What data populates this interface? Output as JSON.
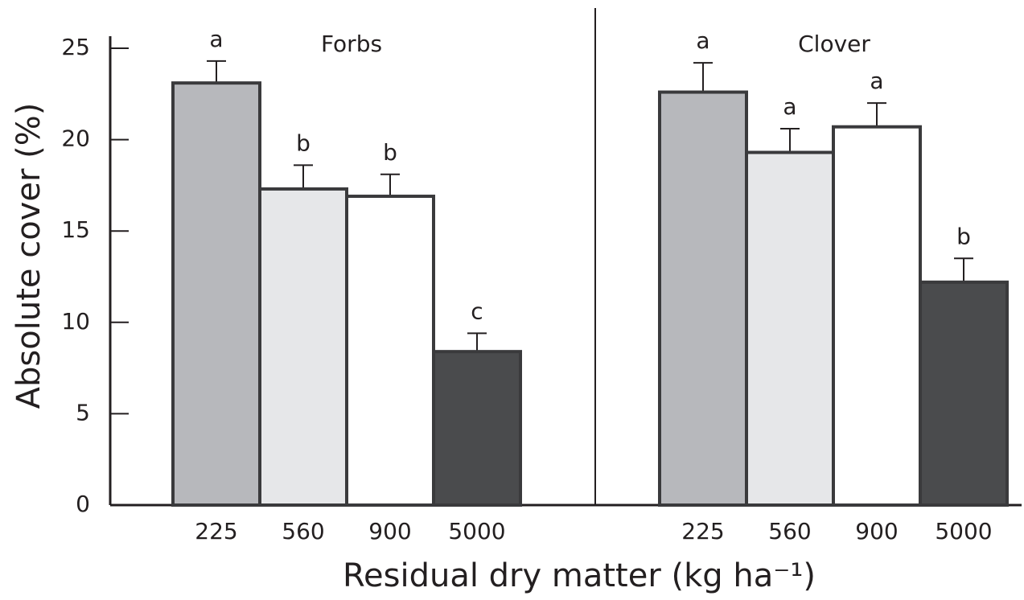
{
  "chart_data": {
    "type": "bar",
    "ylabel": "Absolute cover (%)",
    "xlabel": "Residual dry matter (kg ha⁻¹)",
    "ylim": [
      0,
      25
    ],
    "yticks": [
      0,
      5,
      10,
      15,
      20,
      25
    ],
    "colors": [
      "#b7b8bc",
      "#e6e7e9",
      "#ffffff",
      "#4a4b4d"
    ],
    "panels": [
      {
        "title": "Forbs",
        "categories": [
          "225",
          "560",
          "900",
          "5000"
        ],
        "values": [
          23.1,
          17.3,
          16.9,
          8.4
        ],
        "errors": [
          1.2,
          1.3,
          1.2,
          1.0
        ],
        "letters": [
          "a",
          "b",
          "b",
          "c"
        ]
      },
      {
        "title": "Clover",
        "categories": [
          "225",
          "560",
          "900",
          "5000"
        ],
        "values": [
          22.6,
          19.3,
          20.7,
          12.2
        ],
        "errors": [
          1.6,
          1.3,
          1.3,
          1.3
        ],
        "letters": [
          "a",
          "a",
          "a",
          "b"
        ]
      }
    ]
  }
}
